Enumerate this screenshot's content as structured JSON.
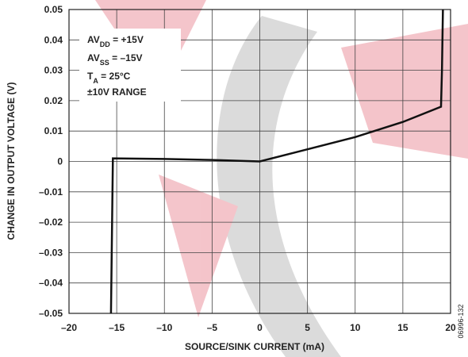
{
  "chart_data": {
    "type": "line",
    "xlabel": "SOURCE/SINK CURRENT (mA)",
    "ylabel": "CHANGE IN OUTPUT VOLTAGE (V)",
    "figure_id": "06996-132",
    "annotations": [
      {
        "text": "AV",
        "sub": "DD",
        "suffix": " = +15V"
      },
      {
        "text": "AV",
        "sub": "SS",
        "suffix": " = –15V"
      },
      {
        "text": "T",
        "sub": "A",
        "suffix": " = 25°C"
      },
      {
        "text": "±10V RANGE"
      }
    ],
    "xlim": [
      -20,
      20
    ],
    "ylim": [
      -0.05,
      0.05
    ],
    "xticks": [
      {
        "value": -20,
        "label": "–20"
      },
      {
        "value": -15,
        "label": "–15"
      },
      {
        "value": -10,
        "label": "–10"
      },
      {
        "value": -5,
        "label": "–5"
      },
      0,
      5,
      10,
      15,
      20
    ],
    "yticks": [
      {
        "value": -0.05,
        "label": "–0.05"
      },
      {
        "value": -0.04,
        "label": "–0.04"
      },
      {
        "value": -0.03,
        "label": "–0.03"
      },
      {
        "value": -0.02,
        "label": "–0.02"
      },
      {
        "value": -0.01,
        "label": "–0.01"
      },
      0,
      0.01,
      0.02,
      0.03,
      0.04,
      0.05
    ],
    "grid": true,
    "series": [
      {
        "color": "#111111",
        "x": [
          -15.6,
          -15.4,
          -10,
          -5,
          -2,
          0,
          5,
          10,
          15,
          19,
          19.1,
          19.2
        ],
        "values": [
          -0.05,
          0.001,
          0.0008,
          0.0005,
          0.0002,
          0,
          0.004,
          0.008,
          0.013,
          0.018,
          0.03,
          0.05
        ]
      }
    ]
  }
}
